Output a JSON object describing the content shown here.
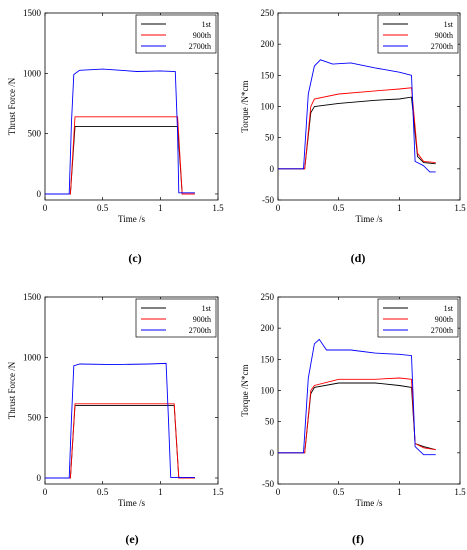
{
  "chart_data": [
    {
      "type": "line",
      "panel_label": "(c)",
      "xlabel": "Time /s",
      "ylabel": "Thrust Force /N",
      "xlim": [
        0,
        1.5
      ],
      "ylim": [
        -50,
        1500
      ],
      "xticks": [
        "0",
        "0.5",
        "1",
        "1.5"
      ],
      "yticks": [
        "0",
        "500",
        "1000",
        "1500"
      ],
      "legend": "top-right",
      "grid": false,
      "series": [
        {
          "name": "1st",
          "color": "#000000",
          "x": [
            0,
            0.22,
            0.24,
            0.26,
            1.15,
            1.17,
            1.19,
            1.3
          ],
          "y": [
            0,
            0,
            280,
            560,
            560,
            280,
            0,
            0
          ]
        },
        {
          "name": "900th",
          "color": "#ff0000",
          "x": [
            0,
            0.22,
            0.24,
            0.26,
            1.15,
            1.17,
            1.19,
            1.3
          ],
          "y": [
            0,
            0,
            320,
            640,
            640,
            320,
            0,
            0
          ]
        },
        {
          "name": "2700th",
          "color": "#0000ff",
          "x": [
            0,
            0.21,
            0.23,
            0.25,
            0.3,
            0.5,
            0.8,
            1.0,
            1.13,
            1.15,
            1.16,
            1.3
          ],
          "y": [
            0,
            0,
            600,
            990,
            1025,
            1035,
            1015,
            1020,
            1015,
            500,
            10,
            10
          ]
        }
      ]
    },
    {
      "type": "line",
      "panel_label": "(d)",
      "xlabel": "Time /s",
      "ylabel": "Torque /N*cm",
      "xlim": [
        0,
        1.5
      ],
      "ylim": [
        -50,
        250
      ],
      "xticks": [
        "0",
        "0.5",
        "1",
        "1.5"
      ],
      "yticks": [
        "-50",
        "0",
        "50",
        "100",
        "150",
        "200",
        "250"
      ],
      "legend": "top-right",
      "grid": false,
      "series": [
        {
          "name": "1st",
          "color": "#000000",
          "x": [
            0,
            0.22,
            0.27,
            0.3,
            0.5,
            0.8,
            1.0,
            1.1,
            1.15,
            1.2,
            1.3
          ],
          "y": [
            0,
            0,
            90,
            100,
            105,
            110,
            112,
            115,
            20,
            10,
            8
          ]
        },
        {
          "name": "900th",
          "color": "#ff0000",
          "x": [
            0,
            0.22,
            0.27,
            0.3,
            0.5,
            0.8,
            1.0,
            1.1,
            1.15,
            1.2,
            1.3
          ],
          "y": [
            0,
            0,
            100,
            112,
            120,
            125,
            128,
            130,
            25,
            12,
            10
          ]
        },
        {
          "name": "2700th",
          "color": "#0000ff",
          "x": [
            0,
            0.21,
            0.25,
            0.3,
            0.35,
            0.45,
            0.6,
            0.8,
            1.0,
            1.1,
            1.13,
            1.2,
            1.25,
            1.3
          ],
          "y": [
            0,
            0,
            120,
            165,
            175,
            168,
            170,
            162,
            155,
            150,
            12,
            5,
            -5,
            -5
          ]
        }
      ]
    },
    {
      "type": "line",
      "panel_label": "(e)",
      "xlabel": "Time /s",
      "ylabel": "Thrust Force /N",
      "xlim": [
        0,
        1.5
      ],
      "ylim": [
        -50,
        1500
      ],
      "xticks": [
        "0",
        "0.5",
        "1",
        "1.5"
      ],
      "yticks": [
        "0",
        "500",
        "1000",
        "1500"
      ],
      "legend": "top-right",
      "grid": false,
      "series": [
        {
          "name": "1st",
          "color": "#000000",
          "x": [
            0,
            0.22,
            0.24,
            0.26,
            1.12,
            1.14,
            1.16,
            1.3
          ],
          "y": [
            0,
            0,
            300,
            600,
            600,
            300,
            0,
            0
          ]
        },
        {
          "name": "900th",
          "color": "#ff0000",
          "x": [
            0,
            0.22,
            0.24,
            0.26,
            1.12,
            1.14,
            1.16,
            1.3
          ],
          "y": [
            0,
            0,
            310,
            615,
            615,
            310,
            0,
            0
          ]
        },
        {
          "name": "2700th",
          "color": "#0000ff",
          "x": [
            0,
            0.21,
            0.23,
            0.25,
            0.3,
            0.6,
            0.9,
            1.05,
            1.07,
            1.09,
            1.3
          ],
          "y": [
            0,
            0,
            500,
            930,
            945,
            940,
            945,
            950,
            500,
            5,
            5
          ]
        }
      ]
    },
    {
      "type": "line",
      "panel_label": "(f)",
      "xlabel": "Time /s",
      "ylabel": "Torque /N*cm",
      "xlim": [
        0,
        1.5
      ],
      "ylim": [
        -50,
        250
      ],
      "xticks": [
        "0",
        "0.5",
        "1",
        "1.5"
      ],
      "yticks": [
        "-50",
        "0",
        "50",
        "100",
        "150",
        "200",
        "250"
      ],
      "legend": "top-right",
      "grid": false,
      "series": [
        {
          "name": "1st",
          "color": "#000000",
          "x": [
            0,
            0.22,
            0.27,
            0.3,
            0.5,
            0.8,
            1.0,
            1.1,
            1.13,
            1.2,
            1.3
          ],
          "y": [
            0,
            0,
            95,
            105,
            112,
            112,
            108,
            105,
            15,
            10,
            5
          ]
        },
        {
          "name": "900th",
          "color": "#ff0000",
          "x": [
            0,
            0.22,
            0.27,
            0.3,
            0.5,
            0.8,
            1.0,
            1.1,
            1.13,
            1.2,
            1.3
          ],
          "y": [
            0,
            0,
            100,
            108,
            118,
            118,
            120,
            118,
            15,
            8,
            5
          ]
        },
        {
          "name": "2700th",
          "color": "#0000ff",
          "x": [
            0,
            0.21,
            0.25,
            0.3,
            0.34,
            0.4,
            0.6,
            0.8,
            1.0,
            1.1,
            1.13,
            1.2,
            1.3
          ],
          "y": [
            0,
            0,
            120,
            175,
            182,
            165,
            165,
            160,
            158,
            156,
            10,
            -3,
            -3
          ]
        }
      ]
    }
  ]
}
